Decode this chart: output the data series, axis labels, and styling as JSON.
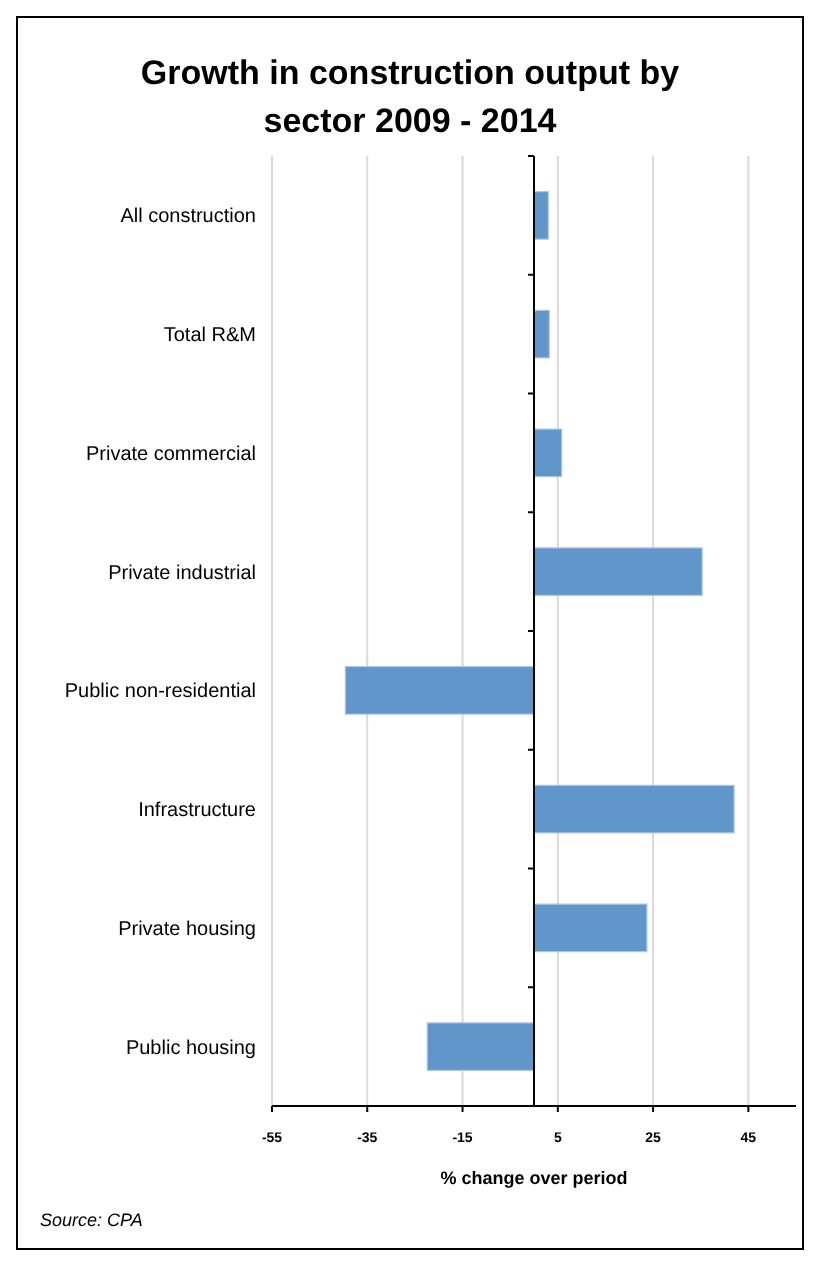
{
  "chart_data": {
    "type": "bar",
    "orientation": "horizontal",
    "title": "Growth in construction output by sector 2009 - 2014",
    "categories": [
      "All construction",
      "Total R&M",
      "Private commercial",
      "Private industrial",
      "Public non-residential",
      "Infrastructure",
      "Private housing",
      "Public housing"
    ],
    "values": [
      3.0,
      3.2,
      5.8,
      35.3,
      -39.6,
      42,
      23.7,
      -22.4
    ],
    "color": "#6096c9",
    "xlim": [
      -55,
      55
    ],
    "xticks": [
      -55,
      -35,
      -15,
      5,
      25,
      45
    ],
    "xlabel": "% change over period",
    "grid": "x",
    "annotations": [
      "Source: CPA"
    ]
  }
}
